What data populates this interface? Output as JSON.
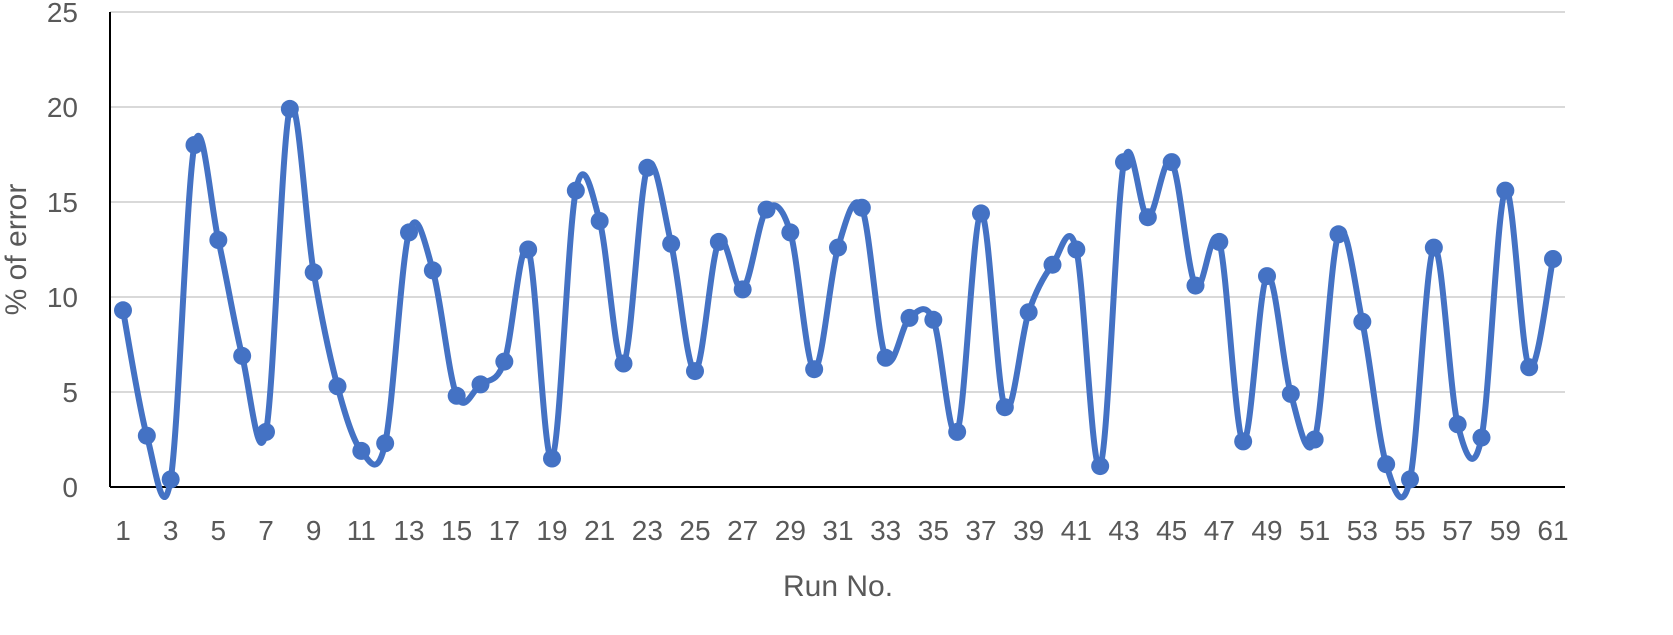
{
  "chart_data": {
    "type": "line",
    "smooth": true,
    "markers": "circle",
    "title": "",
    "xlabel": "Run No.",
    "ylabel": "% of error",
    "ylim": [
      0,
      25
    ],
    "yticks": [
      0,
      5,
      10,
      15,
      20,
      25
    ],
    "grid": "horizontal",
    "legend": "none",
    "x": [
      1,
      2,
      3,
      4,
      5,
      6,
      7,
      8,
      9,
      10,
      11,
      12,
      13,
      14,
      15,
      16,
      17,
      18,
      19,
      20,
      21,
      22,
      23,
      24,
      25,
      26,
      27,
      28,
      29,
      30,
      31,
      32,
      33,
      34,
      35,
      36,
      37,
      38,
      39,
      40,
      41,
      42,
      43,
      44,
      45,
      46,
      47,
      48,
      49,
      50,
      51,
      52,
      53,
      54,
      55,
      56,
      57,
      58,
      59,
      60,
      61
    ],
    "xtick_labels": [
      "1",
      "3",
      "5",
      "7",
      "9",
      "11",
      "13",
      "15",
      "17",
      "19",
      "21",
      "23",
      "25",
      "27",
      "29",
      "31",
      "33",
      "35",
      "37",
      "39",
      "41",
      "43",
      "45",
      "47",
      "49",
      "51",
      "53",
      "55",
      "57",
      "59",
      "61"
    ],
    "series": [
      {
        "values": [
          9.3,
          2.7,
          0.4,
          18.0,
          13.0,
          6.9,
          2.9,
          19.9,
          11.3,
          5.3,
          1.9,
          2.3,
          13.4,
          11.4,
          4.8,
          5.4,
          6.6,
          12.5,
          1.5,
          15.6,
          14.0,
          6.5,
          16.8,
          12.8,
          6.1,
          12.9,
          10.4,
          14.6,
          13.4,
          6.2,
          12.6,
          14.7,
          6.8,
          8.9,
          8.8,
          2.9,
          14.4,
          4.2,
          9.2,
          11.7,
          12.5,
          1.1,
          17.1,
          14.2,
          17.1,
          10.6,
          12.9,
          2.4,
          11.1,
          4.9,
          2.5,
          13.3,
          8.7,
          1.2,
          0.4,
          12.6,
          3.3,
          2.6,
          15.6,
          6.3,
          12.0
        ]
      }
    ],
    "colors": {
      "line": "#4472C4",
      "grid": "#D9D9D9",
      "axis": "#000000",
      "text": "#595959"
    }
  }
}
